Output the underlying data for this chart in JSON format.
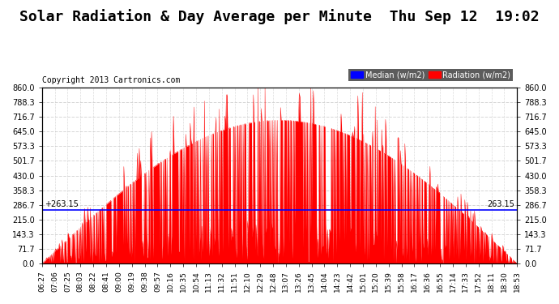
{
  "title": "Solar Radiation & Day Average per Minute  Thu Sep 12  19:02",
  "copyright": "Copyright 2013 Cartronics.com",
  "ylabel_left": "",
  "ylabel_right": "",
  "yticks": [
    0.0,
    71.7,
    143.3,
    215.0,
    286.7,
    358.3,
    430.0,
    501.7,
    573.3,
    645.0,
    716.7,
    788.3,
    860.0
  ],
  "ymax": 860.0,
  "ymin": 0.0,
  "median_value": 263.15,
  "background_color": "#ffffff",
  "plot_bg_color": "#ffffff",
  "bar_color": "#ff0000",
  "median_line_color": "#0000ff",
  "legend_median_bg": "#0000ff",
  "legend_radiation_bg": "#ff0000",
  "title_fontsize": 13,
  "copyright_fontsize": 7,
  "tick_fontsize": 7,
  "grid_color": "#cccccc",
  "grid_style": "--",
  "num_points": 738
}
